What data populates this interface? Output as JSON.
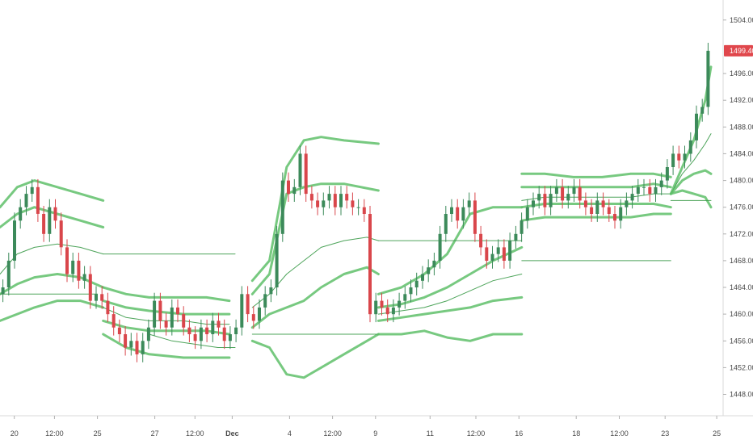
{
  "chart_data": {
    "type": "line",
    "yaxis": {
      "range": [
        1444.8,
        1507.0
      ],
      "ticks": [
        {
          "value": 1448,
          "label": "1448.000"
        },
        {
          "value": 1452,
          "label": "1452.000"
        },
        {
          "value": 1456,
          "label": "1456.000"
        },
        {
          "value": 1460,
          "label": "1460.000"
        },
        {
          "value": 1464,
          "label": "1464.000"
        },
        {
          "value": 1468,
          "label": "1468.000"
        },
        {
          "value": 1472,
          "label": "1472.000"
        },
        {
          "value": 1476,
          "label": "1476.000"
        },
        {
          "value": 1480,
          "label": "1480.000"
        },
        {
          "value": 1484,
          "label": "1484.000"
        },
        {
          "value": 1488,
          "label": "1488.000"
        },
        {
          "value": 1492,
          "label": "1492.000"
        },
        {
          "value": 1496,
          "label": "1496.000"
        },
        {
          "value": 1504,
          "label": "1504.000"
        }
      ],
      "last_price": {
        "value": 1499.402,
        "label": "1499.402",
        "color": "#e0474c"
      }
    },
    "xaxis": {
      "range": [
        0,
        124
      ],
      "ticks": [
        {
          "t": 2.5,
          "label": "20"
        },
        {
          "t": 9.5,
          "label": "12:00"
        },
        {
          "t": 17,
          "label": "25"
        },
        {
          "t": 27,
          "label": "27"
        },
        {
          "t": 34,
          "label": "12:00"
        },
        {
          "t": 40.5,
          "label": "Dec",
          "bold": true
        },
        {
          "t": 50.5,
          "label": "4"
        },
        {
          "t": 58,
          "label": "12:00"
        },
        {
          "t": 65.5,
          "label": "9"
        },
        {
          "t": 75,
          "label": "11"
        },
        {
          "t": 83,
          "label": "12:00"
        },
        {
          "t": 90.5,
          "label": "16"
        },
        {
          "t": 100.5,
          "label": "18"
        },
        {
          "t": 108,
          "label": "12:00"
        },
        {
          "t": 116,
          "label": "23"
        },
        {
          "t": 125,
          "label": "25"
        }
      ]
    },
    "colors": {
      "up": "#3c8a5a",
      "down": "#d9464b",
      "band": "#5fbf6a",
      "band_thin": "#3a9a48"
    },
    "candles": {
      "t_start": 0,
      "closes": [
        1464,
        1468,
        1474,
        1476,
        1478,
        1479,
        1475,
        1472,
        1476,
        1474,
        1470,
        1466,
        1468,
        1465,
        1466,
        1462,
        1463,
        1462,
        1460,
        1458,
        1457,
        1455,
        1456,
        1454,
        1456,
        1458,
        1462,
        1459,
        1458,
        1461,
        1460,
        1458,
        1457,
        1456,
        1458,
        1457,
        1459,
        1458,
        1456,
        1457,
        1458,
        1463,
        1460,
        1459,
        1461,
        1463,
        1464,
        1472,
        1480,
        1478,
        1479,
        1484,
        1478,
        1477,
        1476,
        1477,
        1478,
        1476,
        1478,
        1477,
        1476,
        1476,
        1475,
        1460,
        1462,
        1461,
        1460,
        1461,
        1462,
        1463,
        1464,
        1465,
        1466,
        1467,
        1468,
        1472,
        1475,
        1476,
        1474,
        1476,
        1477,
        1472,
        1470,
        1468,
        1469,
        1470,
        1468,
        1471,
        1472,
        1474,
        1476,
        1477,
        1478,
        1476,
        1478,
        1479,
        1477,
        1478,
        1479,
        1477,
        1476,
        1475,
        1477,
        1476,
        1475,
        1474,
        1476,
        1477,
        1478,
        1479,
        1479,
        1478,
        1479,
        1480,
        1482,
        1484,
        1483,
        1484,
        1486,
        1490,
        1491,
        1499.4
      ]
    },
    "bands": [
      {
        "name": "",
        "style": "thick",
        "points": [
          [
            0,
            1476
          ],
          [
            3,
            1479
          ],
          [
            6,
            1480
          ],
          [
            10,
            1479
          ],
          [
            14,
            1478
          ],
          [
            18,
            1477
          ]
        ]
      },
      {
        "name": "",
        "style": "thick",
        "points": [
          [
            0,
            1473
          ],
          [
            3,
            1475
          ],
          [
            6,
            1476
          ],
          [
            10,
            1475
          ],
          [
            14,
            1474
          ],
          [
            18,
            1473
          ]
        ]
      },
      {
        "name": "",
        "style": "thin",
        "points": [
          [
            0,
            1466
          ],
          [
            3,
            1469
          ],
          [
            6,
            1470
          ],
          [
            10,
            1470.5
          ],
          [
            14,
            1470
          ],
          [
            18,
            1469
          ]
        ]
      },
      {
        "name": "",
        "style": "thick",
        "points": [
          [
            0,
            1463
          ],
          [
            3,
            1464.5
          ],
          [
            6,
            1465.5
          ],
          [
            10,
            1466
          ],
          [
            14,
            1465.5
          ],
          [
            18,
            1464
          ]
        ]
      },
      {
        "name": "",
        "style": "thick",
        "points": [
          [
            0,
            1459
          ],
          [
            3,
            1460
          ],
          [
            6,
            1461
          ],
          [
            10,
            1462
          ],
          [
            14,
            1462
          ],
          [
            18,
            1461
          ]
        ]
      },
      {
        "name": "",
        "style": "thin",
        "points": [
          [
            0,
            1463
          ],
          [
            17,
            1463
          ]
        ]
      },
      {
        "name": "",
        "style": "thin",
        "points": [
          [
            18,
            1469
          ],
          [
            41,
            1469
          ]
        ]
      },
      {
        "name": "",
        "style": "thick",
        "points": [
          [
            18,
            1464
          ],
          [
            22,
            1463
          ],
          [
            26,
            1462.5
          ],
          [
            32,
            1462.5
          ],
          [
            36,
            1462.5
          ],
          [
            40,
            1462
          ]
        ]
      },
      {
        "name": "",
        "style": "thick",
        "points": [
          [
            18,
            1462
          ],
          [
            22,
            1461
          ],
          [
            26,
            1460.5
          ],
          [
            32,
            1460
          ],
          [
            36,
            1460
          ],
          [
            40,
            1460
          ]
        ]
      },
      {
        "name": "",
        "style": "thin",
        "points": [
          [
            18,
            1461
          ],
          [
            22,
            1459.5
          ],
          [
            26,
            1459
          ],
          [
            32,
            1459
          ],
          [
            36,
            1458.5
          ],
          [
            40,
            1458.5
          ]
        ]
      },
      {
        "name": "",
        "style": "thick",
        "points": [
          [
            18,
            1459
          ],
          [
            22,
            1458
          ],
          [
            26,
            1457.5
          ],
          [
            32,
            1457.5
          ],
          [
            36,
            1457.5
          ],
          [
            40,
            1457
          ]
        ]
      },
      {
        "name": "",
        "style": "thick",
        "points": [
          [
            18,
            1457
          ],
          [
            22,
            1455
          ],
          [
            26,
            1454
          ],
          [
            32,
            1453.5
          ],
          [
            36,
            1453.5
          ],
          [
            40,
            1453.5
          ]
        ]
      },
      {
        "name": "",
        "style": "thin",
        "points": [
          [
            26,
            1457
          ],
          [
            30,
            1456
          ],
          [
            34,
            1455.5
          ],
          [
            38,
            1455
          ],
          [
            41,
            1455
          ]
        ]
      },
      {
        "name": "",
        "style": "thick",
        "points": [
          [
            44,
            1465
          ],
          [
            47,
            1468
          ],
          [
            50,
            1482
          ],
          [
            53,
            1486
          ],
          [
            56,
            1486.5
          ],
          [
            60,
            1486
          ],
          [
            66,
            1485.5
          ]
        ]
      },
      {
        "name": "",
        "style": "thick",
        "points": [
          [
            44,
            1463
          ],
          [
            47,
            1466
          ],
          [
            50,
            1478
          ],
          [
            53,
            1479
          ],
          [
            56,
            1479.5
          ],
          [
            60,
            1479.5
          ],
          [
            66,
            1478.5
          ]
        ]
      },
      {
        "name": "",
        "style": "thin",
        "points": [
          [
            44,
            1461
          ],
          [
            47,
            1463
          ],
          [
            50,
            1466
          ],
          [
            53,
            1468
          ],
          [
            56,
            1470
          ],
          [
            60,
            1471
          ],
          [
            64,
            1471.5
          ],
          [
            66,
            1471
          ]
        ]
      },
      {
        "name": "",
        "style": "thick",
        "points": [
          [
            44,
            1458
          ],
          [
            47,
            1460
          ],
          [
            50,
            1461
          ],
          [
            53,
            1462
          ],
          [
            56,
            1464
          ],
          [
            60,
            1466
          ],
          [
            64,
            1467
          ],
          [
            66,
            1466
          ]
        ]
      },
      {
        "name": "",
        "style": "thick",
        "points": [
          [
            44,
            1456
          ],
          [
            47,
            1455
          ],
          [
            50,
            1451
          ],
          [
            53,
            1450.5
          ],
          [
            56,
            1452
          ],
          [
            60,
            1454
          ],
          [
            64,
            1456
          ],
          [
            66,
            1457
          ]
        ]
      },
      {
        "name": "",
        "style": "thin",
        "points": [
          [
            44,
            1457
          ],
          [
            66,
            1457
          ]
        ]
      },
      {
        "name": "",
        "style": "thick",
        "points": [
          [
            66,
            1463
          ],
          [
            70,
            1464
          ],
          [
            74,
            1466
          ],
          [
            78,
            1469
          ],
          [
            82,
            1475
          ],
          [
            86,
            1476
          ],
          [
            91,
            1476
          ]
        ]
      },
      {
        "name": "",
        "style": "thick",
        "points": [
          [
            66,
            1461
          ],
          [
            70,
            1461.5
          ],
          [
            74,
            1462.5
          ],
          [
            78,
            1464
          ],
          [
            82,
            1466
          ],
          [
            86,
            1468
          ],
          [
            91,
            1470
          ]
        ]
      },
      {
        "name": "",
        "style": "thin",
        "points": [
          [
            66,
            1460
          ],
          [
            70,
            1460.5
          ],
          [
            74,
            1461
          ],
          [
            78,
            1462
          ],
          [
            82,
            1463.5
          ],
          [
            86,
            1465
          ],
          [
            91,
            1466
          ]
        ]
      },
      {
        "name": "",
        "style": "thick",
        "points": [
          [
            66,
            1459
          ],
          [
            70,
            1459.5
          ],
          [
            74,
            1460
          ],
          [
            78,
            1460.5
          ],
          [
            82,
            1461
          ],
          [
            86,
            1462
          ],
          [
            91,
            1462.5
          ]
        ]
      },
      {
        "name": "",
        "style": "thick",
        "points": [
          [
            66,
            1457
          ],
          [
            70,
            1457
          ],
          [
            74,
            1457.5
          ],
          [
            78,
            1456.5
          ],
          [
            82,
            1456
          ],
          [
            86,
            1457
          ],
          [
            91,
            1457
          ]
        ]
      },
      {
        "name": "",
        "style": "thin",
        "points": [
          [
            66,
            1471
          ],
          [
            91,
            1471
          ]
        ]
      },
      {
        "name": "",
        "style": "thick",
        "points": [
          [
            91,
            1481
          ],
          [
            95,
            1481
          ],
          [
            100,
            1480.5
          ],
          [
            105,
            1480.5
          ],
          [
            110,
            1481
          ],
          [
            114,
            1481
          ],
          [
            117,
            1480.5
          ]
        ]
      },
      {
        "name": "",
        "style": "thick",
        "points": [
          [
            91,
            1479
          ],
          [
            95,
            1479
          ],
          [
            100,
            1479
          ],
          [
            105,
            1479
          ],
          [
            110,
            1479
          ],
          [
            114,
            1479.5
          ],
          [
            117,
            1479
          ]
        ]
      },
      {
        "name": "",
        "style": "thin",
        "points": [
          [
            91,
            1477
          ],
          [
            95,
            1477.5
          ],
          [
            100,
            1477.5
          ],
          [
            105,
            1477.5
          ],
          [
            110,
            1477.5
          ],
          [
            114,
            1478
          ],
          [
            117,
            1478
          ]
        ]
      },
      {
        "name": "",
        "style": "thick",
        "points": [
          [
            91,
            1476
          ],
          [
            95,
            1476.5
          ],
          [
            100,
            1476.5
          ],
          [
            105,
            1476.5
          ],
          [
            110,
            1476.5
          ],
          [
            114,
            1476.5
          ],
          [
            117,
            1476
          ]
        ]
      },
      {
        "name": "",
        "style": "thick",
        "points": [
          [
            91,
            1474
          ],
          [
            95,
            1474.5
          ],
          [
            100,
            1474.5
          ],
          [
            105,
            1474.5
          ],
          [
            110,
            1474.5
          ],
          [
            114,
            1475
          ],
          [
            117,
            1475
          ]
        ]
      },
      {
        "name": "",
        "style": "thin",
        "points": [
          [
            91,
            1468
          ],
          [
            117,
            1468
          ]
        ]
      },
      {
        "name": "",
        "style": "thick",
        "points": [
          [
            117,
            1478
          ],
          [
            119,
            1482
          ],
          [
            121,
            1486
          ],
          [
            123,
            1492
          ],
          [
            124,
            1497
          ]
        ]
      },
      {
        "name": "",
        "style": "thin",
        "points": [
          [
            117,
            1478
          ],
          [
            119,
            1481
          ],
          [
            121,
            1483
          ],
          [
            123,
            1485.5
          ],
          [
            124,
            1487
          ]
        ]
      },
      {
        "name": "",
        "style": "thick",
        "points": [
          [
            117,
            1478
          ],
          [
            119,
            1480
          ],
          [
            121,
            1481
          ],
          [
            123,
            1481.5
          ],
          [
            124,
            1481
          ]
        ]
      },
      {
        "name": "",
        "style": "thick",
        "points": [
          [
            117,
            1478
          ],
          [
            119,
            1478.5
          ],
          [
            121,
            1478
          ],
          [
            123,
            1477.5
          ],
          [
            124,
            1476
          ]
        ]
      },
      {
        "name": "",
        "style": "thin",
        "points": [
          [
            117,
            1477
          ],
          [
            124,
            1477
          ]
        ]
      }
    ]
  }
}
